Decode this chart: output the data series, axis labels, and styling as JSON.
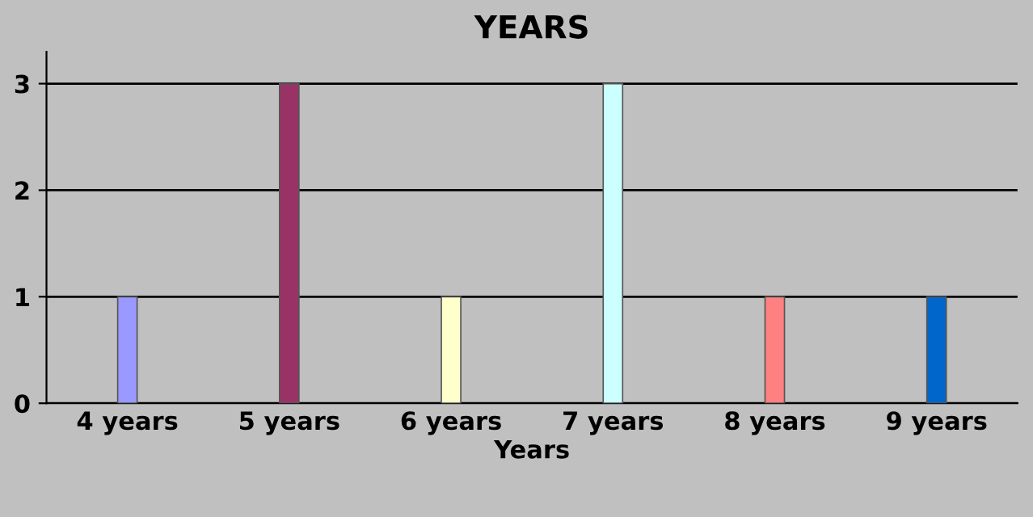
{
  "chart_data": {
    "type": "bar",
    "title": "YEARS",
    "xlabel": "Years",
    "categories": [
      "4 years",
      "5 years",
      "6 years",
      "7 years",
      "8 years",
      "9 years"
    ],
    "values": [
      1,
      3,
      1,
      3,
      1,
      1
    ],
    "colors": [
      "#9999ff",
      "#993366",
      "#ffffcc",
      "#ccffff",
      "#ff8080",
      "#0066cc"
    ],
    "ylim": [
      0,
      3.3
    ],
    "yticks": [
      0,
      1,
      2,
      3
    ],
    "grid": "y",
    "legend": false
  }
}
